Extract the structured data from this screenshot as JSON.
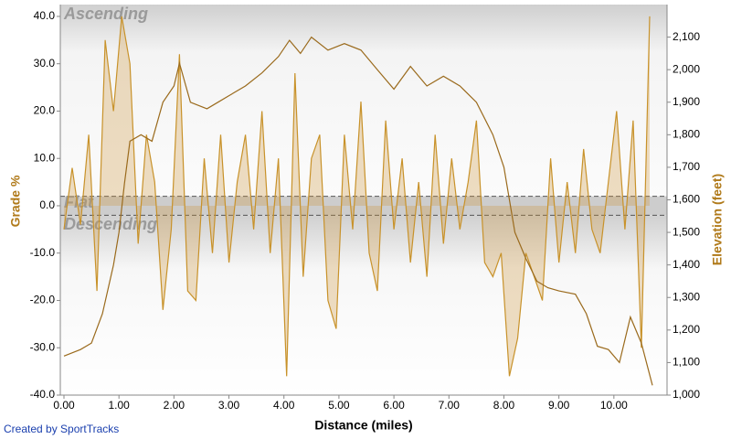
{
  "chart_data": {
    "type": "grade-elevation",
    "zones": [
      "Ascending",
      "Flat",
      "Descending"
    ],
    "flat_band": [
      -2,
      2
    ],
    "x_label": "Distance (miles)",
    "y_label": "Grade %",
    "y2_label": "Elevation (feet)",
    "credit": "Created by SportTracks",
    "xlim": [
      0,
      10.9
    ],
    "ylim": [
      -40,
      42.5
    ],
    "y2lim": [
      1000,
      2200
    ],
    "xticks": [
      {
        "value": 0,
        "label": "0.00"
      },
      {
        "value": 1,
        "label": "1.00"
      },
      {
        "value": 2,
        "label": "2.00"
      },
      {
        "value": 3,
        "label": "3.00"
      },
      {
        "value": 4,
        "label": "4.00"
      },
      {
        "value": 5,
        "label": "5.00"
      },
      {
        "value": 6,
        "label": "6.00"
      },
      {
        "value": 7,
        "label": "7.00"
      },
      {
        "value": 8,
        "label": "8.00"
      },
      {
        "value": 9,
        "label": "9.00"
      },
      {
        "value": 10,
        "label": "10.00"
      }
    ],
    "yticks": [
      {
        "value": -40,
        "label": "-40.0"
      },
      {
        "value": -30,
        "label": "-30.0"
      },
      {
        "value": -20,
        "label": "-20.0"
      },
      {
        "value": -10,
        "label": "-10.0"
      },
      {
        "value": 0,
        "label": "0.0"
      },
      {
        "value": 10,
        "label": "10.0"
      },
      {
        "value": 20,
        "label": "20.0"
      },
      {
        "value": 30,
        "label": "30.0"
      },
      {
        "value": 40,
        "label": "40.0"
      }
    ],
    "y2ticks": [
      {
        "value": 1000,
        "label": "1,000"
      },
      {
        "value": 1100,
        "label": "1,100"
      },
      {
        "value": 1200,
        "label": "1,200"
      },
      {
        "value": 1300,
        "label": "1,300"
      },
      {
        "value": 1400,
        "label": "1,400"
      },
      {
        "value": 1500,
        "label": "1,500"
      },
      {
        "value": 1600,
        "label": "1,600"
      },
      {
        "value": 1700,
        "label": "1,700"
      },
      {
        "value": 1800,
        "label": "1,800"
      },
      {
        "value": 1900,
        "label": "1,900"
      },
      {
        "value": 2000,
        "label": "2,000"
      },
      {
        "value": 2100,
        "label": "2,100"
      }
    ],
    "series": [
      {
        "name": "Grade %",
        "color": "#c8922a",
        "fill": "rgba(205,150,60,0.3)",
        "x": [
          0,
          0.15,
          0.3,
          0.45,
          0.6,
          0.75,
          0.9,
          1.05,
          1.2,
          1.35,
          1.5,
          1.65,
          1.8,
          1.95,
          2.1,
          2.25,
          2.4,
          2.55,
          2.7,
          2.85,
          3.0,
          3.15,
          3.3,
          3.45,
          3.6,
          3.75,
          3.9,
          4.05,
          4.2,
          4.35,
          4.5,
          4.65,
          4.8,
          4.95,
          5.1,
          5.25,
          5.4,
          5.55,
          5.7,
          5.85,
          6.0,
          6.15,
          6.3,
          6.45,
          6.6,
          6.75,
          6.9,
          7.05,
          7.2,
          7.35,
          7.5,
          7.65,
          7.8,
          7.95,
          8.1,
          8.25,
          8.4,
          8.55,
          8.7,
          8.85,
          9.0,
          9.15,
          9.3,
          9.45,
          9.6,
          9.75,
          9.9,
          10.05,
          10.2,
          10.35,
          10.5,
          10.65
        ],
        "values": [
          -5,
          8,
          -4,
          15,
          -18,
          35,
          20,
          40,
          30,
          -8,
          15,
          5,
          -22,
          -5,
          32,
          -18,
          -20,
          10,
          -10,
          15,
          -12,
          5,
          15,
          -5,
          20,
          -10,
          10,
          -36,
          28,
          -15,
          10,
          15,
          -20,
          -26,
          15,
          -5,
          22,
          -10,
          -18,
          18,
          -5,
          10,
          -12,
          5,
          -15,
          15,
          -8,
          10,
          -5,
          5,
          18,
          -12,
          -15,
          -10,
          -36,
          -28,
          -10,
          -15,
          -20,
          10,
          -12,
          5,
          -10,
          12,
          -5,
          -10,
          5,
          20,
          -5,
          18,
          -30,
          40
        ]
      },
      {
        "name": "Elevation (feet)",
        "color": "#9a6a1c",
        "axis": "y2",
        "x": [
          0,
          0.3,
          0.5,
          0.7,
          0.9,
          1.0,
          1.1,
          1.2,
          1.4,
          1.6,
          1.8,
          2.0,
          2.1,
          2.3,
          2.6,
          2.8,
          3.0,
          3.3,
          3.6,
          3.9,
          4.1,
          4.3,
          4.5,
          4.8,
          5.1,
          5.4,
          5.7,
          6.0,
          6.3,
          6.6,
          6.9,
          7.2,
          7.5,
          7.8,
          8.0,
          8.2,
          8.4,
          8.6,
          8.8,
          9.0,
          9.3,
          9.5,
          9.7,
          9.9,
          10.1,
          10.3,
          10.5,
          10.7
        ],
        "values": [
          1120,
          1140,
          1160,
          1250,
          1400,
          1500,
          1650,
          1780,
          1800,
          1780,
          1900,
          1950,
          2020,
          1900,
          1880,
          1900,
          1920,
          1950,
          1990,
          2040,
          2090,
          2050,
          2100,
          2060,
          2080,
          2060,
          2000,
          1940,
          2010,
          1950,
          1980,
          1950,
          1900,
          1800,
          1700,
          1500,
          1420,
          1350,
          1330,
          1320,
          1310,
          1250,
          1150,
          1140,
          1100,
          1240,
          1160,
          1030
        ]
      }
    ]
  }
}
